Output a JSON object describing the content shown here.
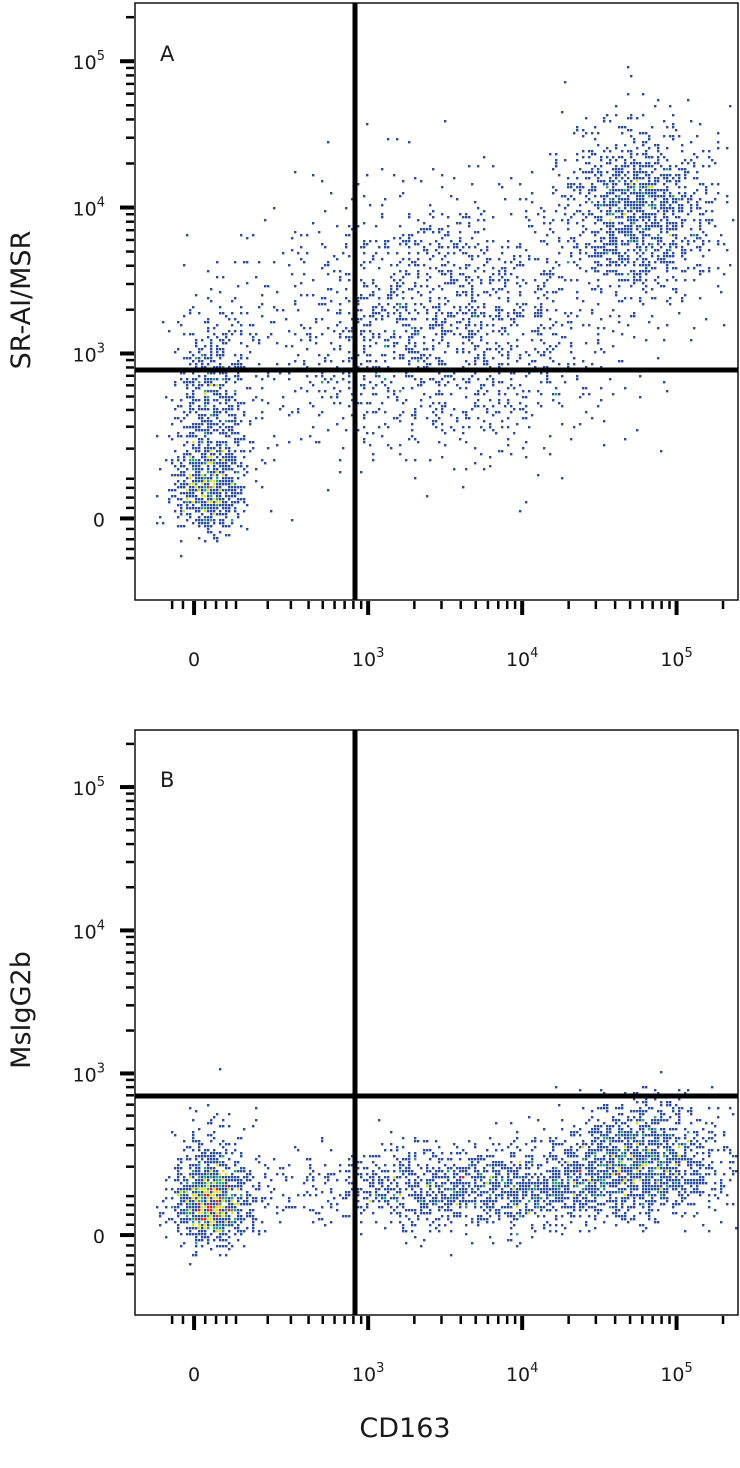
{
  "figure": {
    "shared_xlabel": "CD163",
    "panels": [
      {
        "letter": "A",
        "ylabel": "SR-AI/MSR"
      },
      {
        "letter": "B",
        "ylabel": "MsIgG2b"
      }
    ]
  },
  "axis_ticks": {
    "x": [
      {
        "base": "0",
        "exp": "",
        "value": 0
      },
      {
        "base": "10",
        "exp": "3",
        "value": 1000
      },
      {
        "base": "10",
        "exp": "4",
        "value": 10000
      },
      {
        "base": "10",
        "exp": "5",
        "value": 100000
      }
    ],
    "y": [
      {
        "base": "0",
        "exp": "",
        "value": 0
      },
      {
        "base": "10",
        "exp": "3",
        "value": 1000
      },
      {
        "base": "10",
        "exp": "4",
        "value": 10000
      },
      {
        "base": "10",
        "exp": "5",
        "value": 100000
      }
    ]
  },
  "colors": {
    "density_low": "#2b4b9b",
    "density_mid_low": "#2fa07a",
    "density_mid": "#dede2a",
    "density_high": "#e0252a",
    "gate_lines": "#000000",
    "axes": "#000000"
  },
  "chart_data": [
    {
      "type": "scatter",
      "subtype": "flow-cytometry density dot plot (biexponential axes)",
      "panel": "A",
      "xlabel": "CD163",
      "ylabel": "SR-AI/MSR",
      "x_scale": "biexponential",
      "y_scale": "biexponential",
      "xlim": [
        -150,
        250000
      ],
      "ylim": [
        -250,
        250000
      ],
      "quadrant_gate": {
        "x": 380,
        "y": 550
      },
      "populations": [
        {
          "description": "double-negative cluster",
          "center": [
            30,
            80
          ],
          "spread_log": [
            0.3,
            0.35
          ],
          "relative_size": 0.18
        },
        {
          "description": "CD163-negative, SR-AI/MSR-low",
          "center": [
            40,
            500
          ],
          "spread_log": [
            0.3,
            0.35
          ],
          "relative_size": 0.12
        },
        {
          "description": "diagonal CD163/SR-AI double-positive trend",
          "center": [
            3000,
            1500
          ],
          "spread_log": [
            0.55,
            0.45
          ],
          "relative_size": 0.4
        },
        {
          "description": "bright CD163+ SR-AI/MSR+ cluster",
          "center": [
            55000,
            9000
          ],
          "spread_log": [
            0.25,
            0.3
          ],
          "relative_size": 0.3
        }
      ],
      "grid": false,
      "legend": "none"
    },
    {
      "type": "scatter",
      "subtype": "flow-cytometry density dot plot (biexponential axes)",
      "panel": "B",
      "xlabel": "CD163",
      "ylabel": "MsIgG2b",
      "x_scale": "biexponential",
      "y_scale": "biexponential",
      "xlim": [
        -150,
        250000
      ],
      "ylim": [
        -250,
        250000
      ],
      "quadrant_gate": {
        "x": 380,
        "y": 550
      },
      "populations": [
        {
          "description": "CD163-negative cluster",
          "center": [
            30,
            80
          ],
          "spread_log": [
            0.3,
            0.3
          ],
          "relative_size": 0.3
        },
        {
          "description": "CD163+ cells along isotype-control baseline",
          "center": [
            8000,
            120
          ],
          "spread_log": [
            0.7,
            0.2
          ],
          "relative_size": 0.45
        },
        {
          "description": "bright CD163+ cluster",
          "center": [
            60000,
            250
          ],
          "spread_log": [
            0.25,
            0.2
          ],
          "relative_size": 0.25
        }
      ],
      "grid": false,
      "legend": "none"
    }
  ]
}
